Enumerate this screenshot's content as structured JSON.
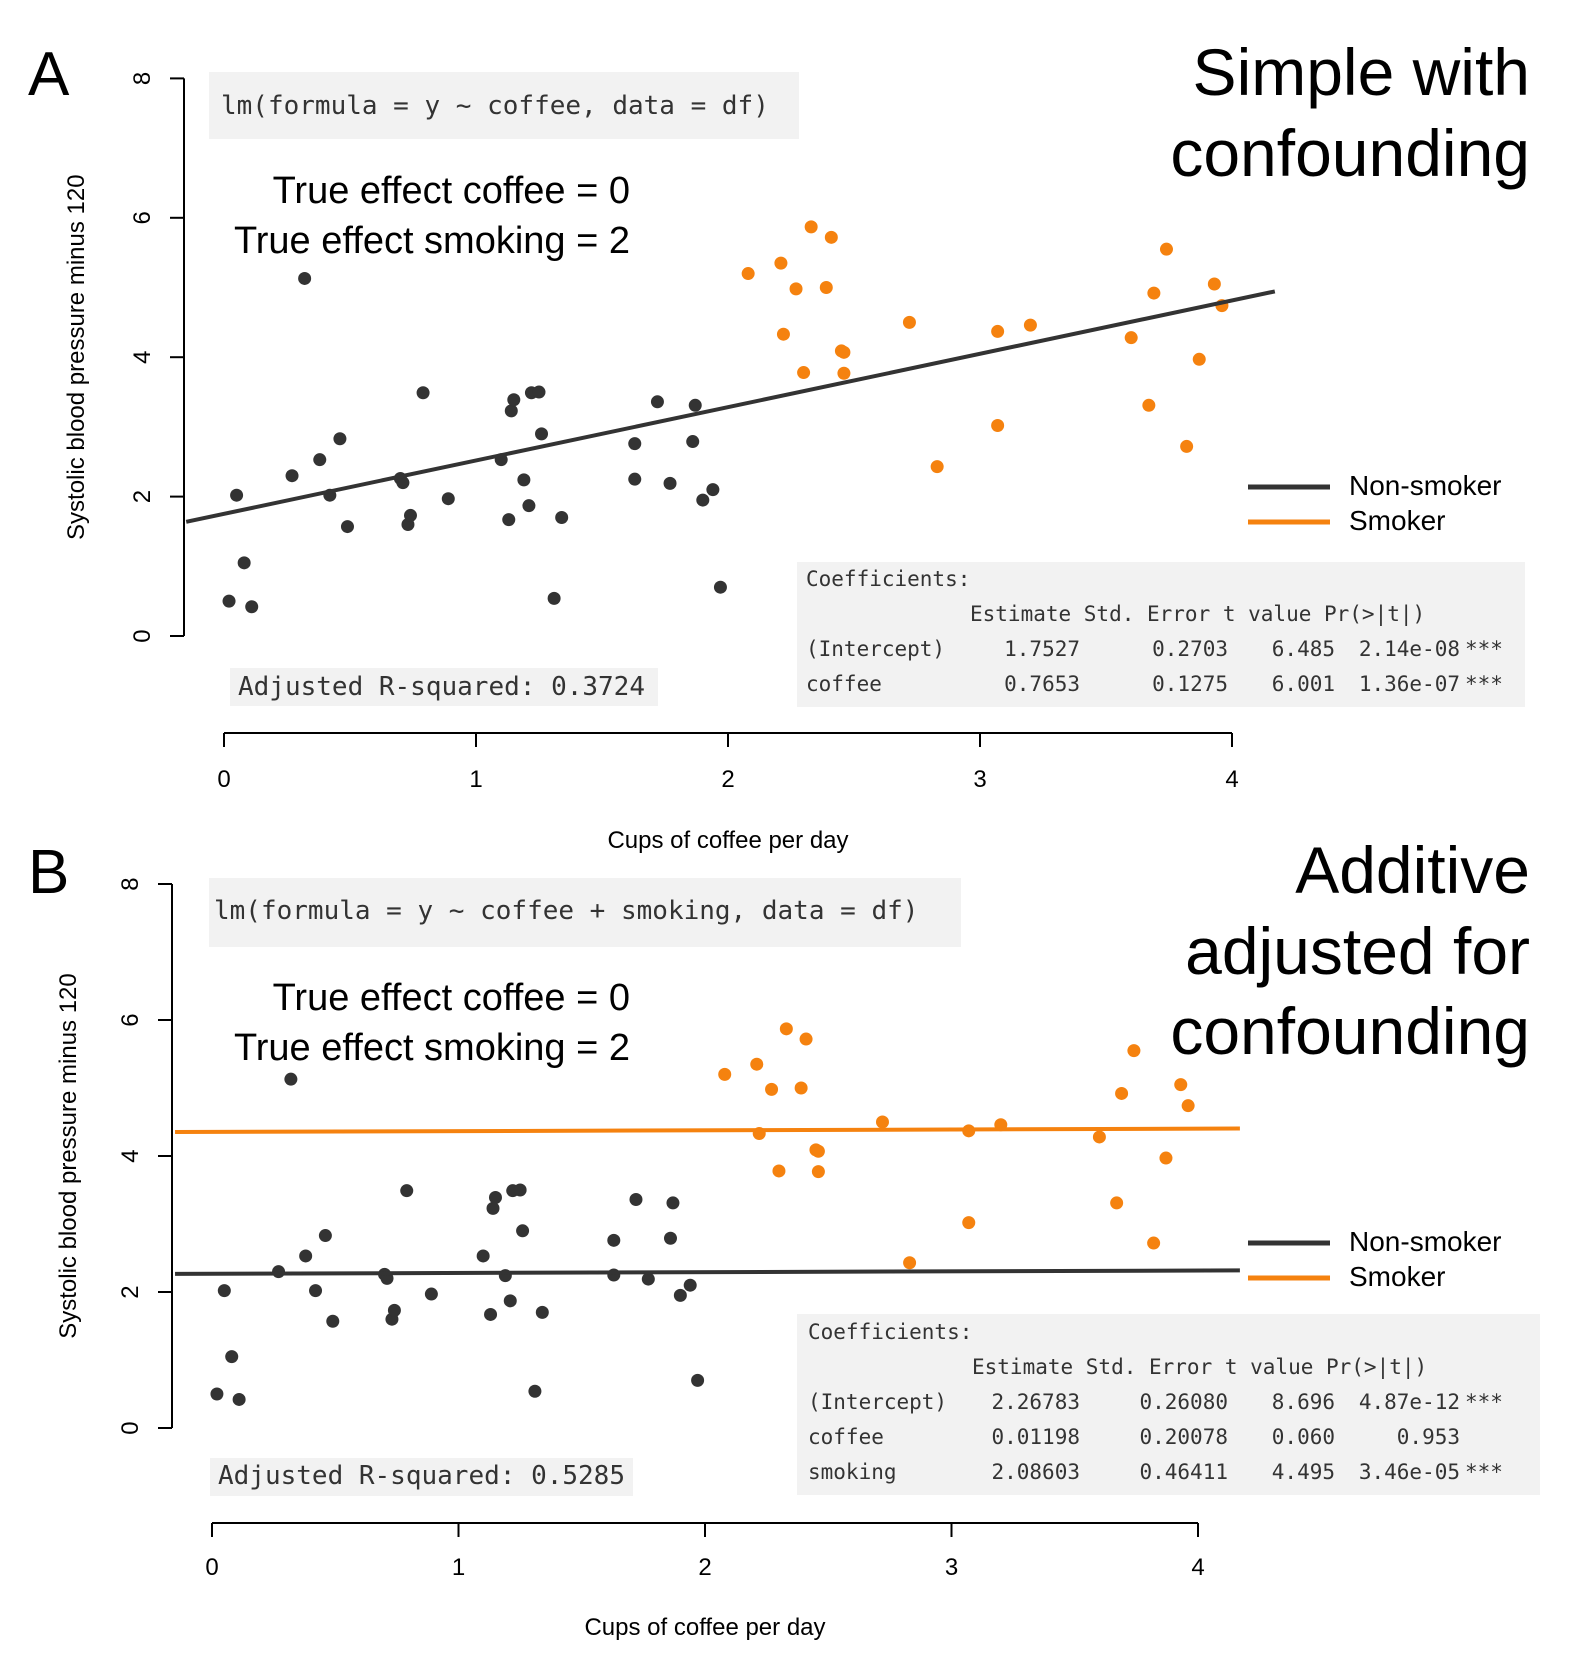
{
  "colors": {
    "non_smoker": "#333333",
    "smoker": "#f5820f",
    "box": "#f2f2f2"
  },
  "legend": {
    "non_smoker": "Non-smoker",
    "smoker": "Smoker"
  },
  "panels": [
    {
      "letter": "A",
      "title_lines": [
        "Simple with",
        "confounding"
      ],
      "formula": "lm(formula = y ~ coffee, data = df)",
      "effects": [
        "True effect coffee = 0",
        "True effect smoking = 2"
      ],
      "adjusted_r2": "Adjusted R-squared:  0.3724",
      "coef_title": "Coefficients:",
      "coef_header": "Estimate Std. Error t value Pr(>|t|)",
      "coef_rows": [
        {
          "name": "(Intercept)",
          "estimate": "1.7527",
          "se": "0.2703",
          "t": "6.485",
          "p": "2.14e-08",
          "sig": "***"
        },
        {
          "name": "coffee",
          "estimate": "0.7653",
          "se": "0.1275",
          "t": "6.001",
          "p": "1.36e-07",
          "sig": "***"
        }
      ],
      "xlabel": "Cups of coffee per day",
      "ylabel": "Systolic blood pressure minus 120",
      "x_ticks": [
        "0",
        "1",
        "2",
        "3",
        "4"
      ],
      "y_ticks": [
        "0",
        "2",
        "4",
        "6",
        "8"
      ]
    },
    {
      "letter": "B",
      "title_lines": [
        "Additive",
        "adjusted for",
        "confounding"
      ],
      "formula": "lm(formula = y ~ coffee + smoking, data = df)",
      "effects": [
        "True effect coffee = 0",
        "True effect smoking = 2"
      ],
      "adjusted_r2": "Adjusted R-squared:  0.5285",
      "coef_title": "Coefficients:",
      "coef_header": "Estimate Std. Error t value Pr(>|t|)",
      "coef_rows": [
        {
          "name": "(Intercept)",
          "estimate": "2.26783",
          "se": "0.26080",
          "t": "8.696",
          "p": "4.87e-12",
          "sig": "***"
        },
        {
          "name": "coffee",
          "estimate": "0.01198",
          "se": "0.20078",
          "t": "0.060",
          "p": "0.953",
          "sig": ""
        },
        {
          "name": "smoking",
          "estimate": "2.08603",
          "se": "0.46411",
          "t": "4.495",
          "p": "3.46e-05",
          "sig": "***"
        }
      ],
      "xlabel": "Cups of coffee per day",
      "ylabel": "Systolic blood pressure minus 120",
      "x_ticks": [
        "0",
        "1",
        "2",
        "3",
        "4"
      ],
      "y_ticks": [
        "0",
        "2",
        "4",
        "6",
        "8"
      ]
    }
  ],
  "chart_data": [
    {
      "type": "scatter",
      "xlim": [
        0,
        4
      ],
      "ylim": [
        0,
        8
      ],
      "series": [
        {
          "name": "Non-smoker",
          "points": [
            [
              0.02,
              0.5
            ],
            [
              0.05,
              2.02
            ],
            [
              0.08,
              1.05
            ],
            [
              0.11,
              0.42
            ],
            [
              0.27,
              2.3
            ],
            [
              0.32,
              5.13
            ],
            [
              0.38,
              2.53
            ],
            [
              0.42,
              2.02
            ],
            [
              0.46,
              2.83
            ],
            [
              0.49,
              1.57
            ],
            [
              0.7,
              2.26
            ],
            [
              0.71,
              2.2
            ],
            [
              0.73,
              1.6
            ],
            [
              0.74,
              1.73
            ],
            [
              0.79,
              3.49
            ],
            [
              0.89,
              1.97
            ],
            [
              1.1,
              2.53
            ],
            [
              1.13,
              1.67
            ],
            [
              1.14,
              3.23
            ],
            [
              1.15,
              3.39
            ],
            [
              1.19,
              2.24
            ],
            [
              1.21,
              1.87
            ],
            [
              1.22,
              3.49
            ],
            [
              1.25,
              3.5
            ],
            [
              1.26,
              2.9
            ],
            [
              1.31,
              0.54
            ],
            [
              1.34,
              1.7
            ],
            [
              1.63,
              2.76
            ],
            [
              1.63,
              2.25
            ],
            [
              1.72,
              3.36
            ],
            [
              1.77,
              2.19
            ],
            [
              1.86,
              2.79
            ],
            [
              1.87,
              3.31
            ],
            [
              1.9,
              1.95
            ],
            [
              1.94,
              2.1
            ],
            [
              1.97,
              0.7
            ]
          ]
        },
        {
          "name": "Smoker",
          "points": [
            [
              2.08,
              5.2
            ],
            [
              2.21,
              5.35
            ],
            [
              2.22,
              4.33
            ],
            [
              2.27,
              4.98
            ],
            [
              2.3,
              3.78
            ],
            [
              2.33,
              5.87
            ],
            [
              2.39,
              5.0
            ],
            [
              2.41,
              5.72
            ],
            [
              2.45,
              4.09
            ],
            [
              2.46,
              4.07
            ],
            [
              2.46,
              3.77
            ],
            [
              2.72,
              4.5
            ],
            [
              2.83,
              2.43
            ],
            [
              3.07,
              4.37
            ],
            [
              3.07,
              3.02
            ],
            [
              3.2,
              4.46
            ],
            [
              3.6,
              4.28
            ],
            [
              3.67,
              3.31
            ],
            [
              3.69,
              4.92
            ],
            [
              3.74,
              5.55
            ],
            [
              3.82,
              2.72
            ],
            [
              3.87,
              3.97
            ],
            [
              3.93,
              5.05
            ],
            [
              3.96,
              4.74
            ]
          ]
        }
      ],
      "fit_lines": [
        {
          "name": "Non-smoker",
          "intercept": 1.7527,
          "slope": 0.7653,
          "x": [
            -0.15,
            4.17
          ]
        }
      ]
    },
    {
      "type": "scatter",
      "xlim": [
        0,
        4
      ],
      "ylim": [
        0,
        8
      ],
      "series": [
        {
          "name": "Non-smoker",
          "points": [
            [
              0.02,
              0.5
            ],
            [
              0.05,
              2.02
            ],
            [
              0.08,
              1.05
            ],
            [
              0.11,
              0.42
            ],
            [
              0.27,
              2.3
            ],
            [
              0.32,
              5.13
            ],
            [
              0.38,
              2.53
            ],
            [
              0.42,
              2.02
            ],
            [
              0.46,
              2.83
            ],
            [
              0.49,
              1.57
            ],
            [
              0.7,
              2.26
            ],
            [
              0.71,
              2.2
            ],
            [
              0.73,
              1.6
            ],
            [
              0.74,
              1.73
            ],
            [
              0.79,
              3.49
            ],
            [
              0.89,
              1.97
            ],
            [
              1.1,
              2.53
            ],
            [
              1.13,
              1.67
            ],
            [
              1.14,
              3.23
            ],
            [
              1.15,
              3.39
            ],
            [
              1.19,
              2.24
            ],
            [
              1.21,
              1.87
            ],
            [
              1.22,
              3.49
            ],
            [
              1.25,
              3.5
            ],
            [
              1.26,
              2.9
            ],
            [
              1.31,
              0.54
            ],
            [
              1.34,
              1.7
            ],
            [
              1.63,
              2.76
            ],
            [
              1.63,
              2.25
            ],
            [
              1.72,
              3.36
            ],
            [
              1.77,
              2.19
            ],
            [
              1.86,
              2.79
            ],
            [
              1.87,
              3.31
            ],
            [
              1.9,
              1.95
            ],
            [
              1.94,
              2.1
            ],
            [
              1.97,
              0.7
            ]
          ]
        },
        {
          "name": "Smoker",
          "points": [
            [
              2.08,
              5.2
            ],
            [
              2.21,
              5.35
            ],
            [
              2.22,
              4.33
            ],
            [
              2.27,
              4.98
            ],
            [
              2.3,
              3.78
            ],
            [
              2.33,
              5.87
            ],
            [
              2.39,
              5.0
            ],
            [
              2.41,
              5.72
            ],
            [
              2.45,
              4.09
            ],
            [
              2.46,
              4.07
            ],
            [
              2.46,
              3.77
            ],
            [
              2.72,
              4.5
            ],
            [
              2.83,
              2.43
            ],
            [
              3.07,
              4.37
            ],
            [
              3.07,
              3.02
            ],
            [
              3.2,
              4.46
            ],
            [
              3.6,
              4.28
            ],
            [
              3.67,
              3.31
            ],
            [
              3.69,
              4.92
            ],
            [
              3.74,
              5.55
            ],
            [
              3.82,
              2.72
            ],
            [
              3.87,
              3.97
            ],
            [
              3.93,
              5.05
            ],
            [
              3.96,
              4.74
            ]
          ]
        }
      ],
      "fit_lines": [
        {
          "name": "Non-smoker",
          "intercept": 2.26783,
          "slope": 0.01198,
          "x": [
            -0.15,
            4.17
          ]
        },
        {
          "name": "Smoker",
          "intercept": 4.35386,
          "slope": 0.01198,
          "x": [
            -0.15,
            4.17
          ]
        }
      ]
    }
  ]
}
